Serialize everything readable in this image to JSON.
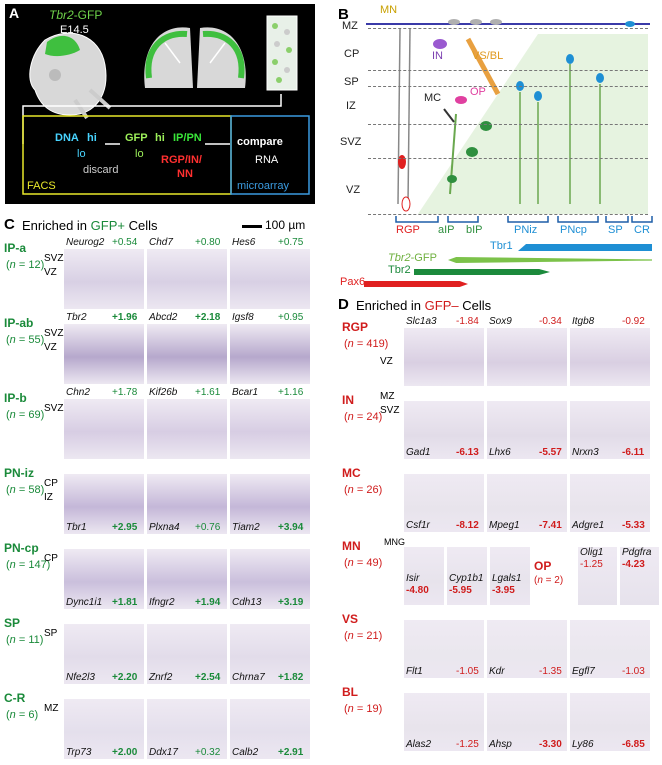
{
  "panel_a": {
    "letter": "A",
    "gfp_label_italic": "Tbr2",
    "gfp_label_rest": "-GFP",
    "age": "E14.5",
    "dna": "DNA",
    "hi1": "hi",
    "lo1": "lo",
    "discard": "discard",
    "gfp": "GFP",
    "hi2": "hi",
    "lo2": "lo",
    "ippn": "IP/PN",
    "rgp": "RGP/IN/",
    "nn": "NN",
    "facs": "FACS",
    "compare": "compare",
    "rna": "RNA",
    "microarray": "microarray"
  },
  "panel_b": {
    "letter": "B",
    "layers": [
      "MZ",
      "CP",
      "SP",
      "IZ",
      "SVZ",
      "VZ"
    ],
    "mn": "MN",
    "in": "IN",
    "vsbl": "VS/BL",
    "mc": "MC",
    "op": "OP",
    "bottom_labels": [
      "RGP",
      "aIP",
      "bIP",
      "PNiz",
      "PNcp",
      "SP",
      "CR"
    ],
    "tbr1": "Tbr1",
    "tbr2gfp_italic": "Tbr2",
    "tbr2gfp_rest": "-GFP",
    "tbr2": "Tbr2",
    "pax6": "Pax6",
    "colors": {
      "tbr1": "#1e8fd4",
      "gfp": "#7cc24a",
      "tbr2": "#1c8a3c",
      "pax6": "#e02020"
    }
  },
  "panel_c": {
    "letter": "C",
    "title_pre": "Enriched in ",
    "title_hl": "GFP+",
    "title_post": " Cells",
    "scale": "100 µm",
    "rows": [
      {
        "label": "IP-a",
        "n": "(n = 12)",
        "inner": [
          "SVZ",
          "VZ"
        ],
        "genes": [
          [
            "Neurog2",
            "+0.54",
            false
          ],
          [
            "Chd7",
            "+0.80",
            false
          ],
          [
            "Hes6",
            "+0.75",
            false
          ]
        ]
      },
      {
        "label": "IP-ab",
        "n": "(n = 55)",
        "inner": [
          "SVZ",
          "VZ"
        ],
        "genes": [
          [
            "Tbr2",
            "+1.96",
            true
          ],
          [
            "Abcd2",
            "+2.18",
            true
          ],
          [
            "Igsf8",
            "+0.95",
            false
          ]
        ]
      },
      {
        "label": "IP-b",
        "n": "(n = 69)",
        "inner": [
          "SVZ"
        ],
        "genes": [
          [
            "Chn2",
            "+1.78",
            false
          ],
          [
            "Kif26b",
            "+1.61",
            false
          ],
          [
            "Bcar1",
            "+1.16",
            false
          ]
        ]
      },
      {
        "label": "PN-iz",
        "n": "(n = 58)",
        "inner": [
          "CP",
          "IZ"
        ],
        "genes": [
          [
            "Tbr1",
            "+2.95",
            true
          ],
          [
            "Plxna4",
            "+0.76",
            false
          ],
          [
            "Tiam2",
            "+3.94",
            true
          ]
        ]
      },
      {
        "label": "PN-cp",
        "n": "(n = 147)",
        "inner": [
          "CP"
        ],
        "genes": [
          [
            "Dync1i1",
            "+1.81",
            true
          ],
          [
            "Ifngr2",
            "+1.94",
            true
          ],
          [
            "Cdh13",
            "+3.19",
            true
          ]
        ]
      },
      {
        "label": "SP",
        "n": "(n = 11)",
        "inner": [
          "SP"
        ],
        "genes": [
          [
            "Nfe2l3",
            "+2.20",
            true
          ],
          [
            "Znrf2",
            "+2.54",
            true
          ],
          [
            "Chrna7",
            "+1.82",
            true
          ]
        ]
      },
      {
        "label": "C-R",
        "n": "(n = 6)",
        "inner": [
          "MZ"
        ],
        "genes": [
          [
            "Trp73",
            "+2.00",
            true
          ],
          [
            "Ddx17",
            "+0.32",
            false
          ],
          [
            "Calb2",
            "+2.91",
            true
          ]
        ]
      }
    ]
  },
  "panel_d": {
    "letter": "D",
    "title_pre": "Enriched in ",
    "title_hl": "GFP–",
    "title_post": " Cells",
    "rows": [
      {
        "label": "RGP",
        "n": "(n = 419)",
        "inner": [
          "VZ"
        ],
        "genes": [
          [
            "Slc1a3",
            "-1.84",
            false
          ],
          [
            "Sox9",
            "-0.34",
            false
          ],
          [
            "Itgb8",
            "-0.92",
            false
          ]
        ]
      },
      {
        "label": "IN",
        "n": "(n = 24)",
        "inner": [
          "MZ",
          "SVZ"
        ],
        "genes": [
          [
            "Gad1",
            "-6.13",
            true
          ],
          [
            "Lhx6",
            "-5.57",
            true
          ],
          [
            "Nrxn3",
            "-6.11",
            true
          ]
        ]
      },
      {
        "label": "MC",
        "n": "(n = 26)",
        "inner": [],
        "genes": [
          [
            "Csf1r",
            "-8.12",
            true
          ],
          [
            "Mpeg1",
            "-7.41",
            true
          ],
          [
            "Adgre1",
            "-5.33",
            true
          ]
        ]
      },
      {
        "label": "MN",
        "n": "(n = 49)",
        "inner": [
          "MNG"
        ],
        "genes": [
          [
            "Isir",
            "-4.80",
            true
          ],
          [
            "Cyp1b1",
            "-5.95",
            true
          ],
          [
            "Lgals1",
            "-3.95",
            true
          ]
        ]
      },
      {
        "label": "VS",
        "n": "(n = 21)",
        "inner": [],
        "genes": [
          [
            "Flt1",
            "-1.05",
            false
          ],
          [
            "Kdr",
            "-1.35",
            false
          ],
          [
            "Egfl7",
            "-1.03",
            false
          ]
        ]
      },
      {
        "label": "BL",
        "n": "(n = 19)",
        "inner": [],
        "genes": [
          [
            "Alas2",
            "-1.25",
            false
          ],
          [
            "Ahsp",
            "-3.30",
            true
          ],
          [
            "Ly86",
            "-6.85",
            true
          ]
        ]
      }
    ],
    "op": {
      "label": "OP",
      "n": "(n = 2)",
      "genes": [
        [
          "Olig1",
          "-1.25",
          false
        ],
        [
          "Pdgfra",
          "-4.23",
          true
        ]
      ]
    }
  }
}
